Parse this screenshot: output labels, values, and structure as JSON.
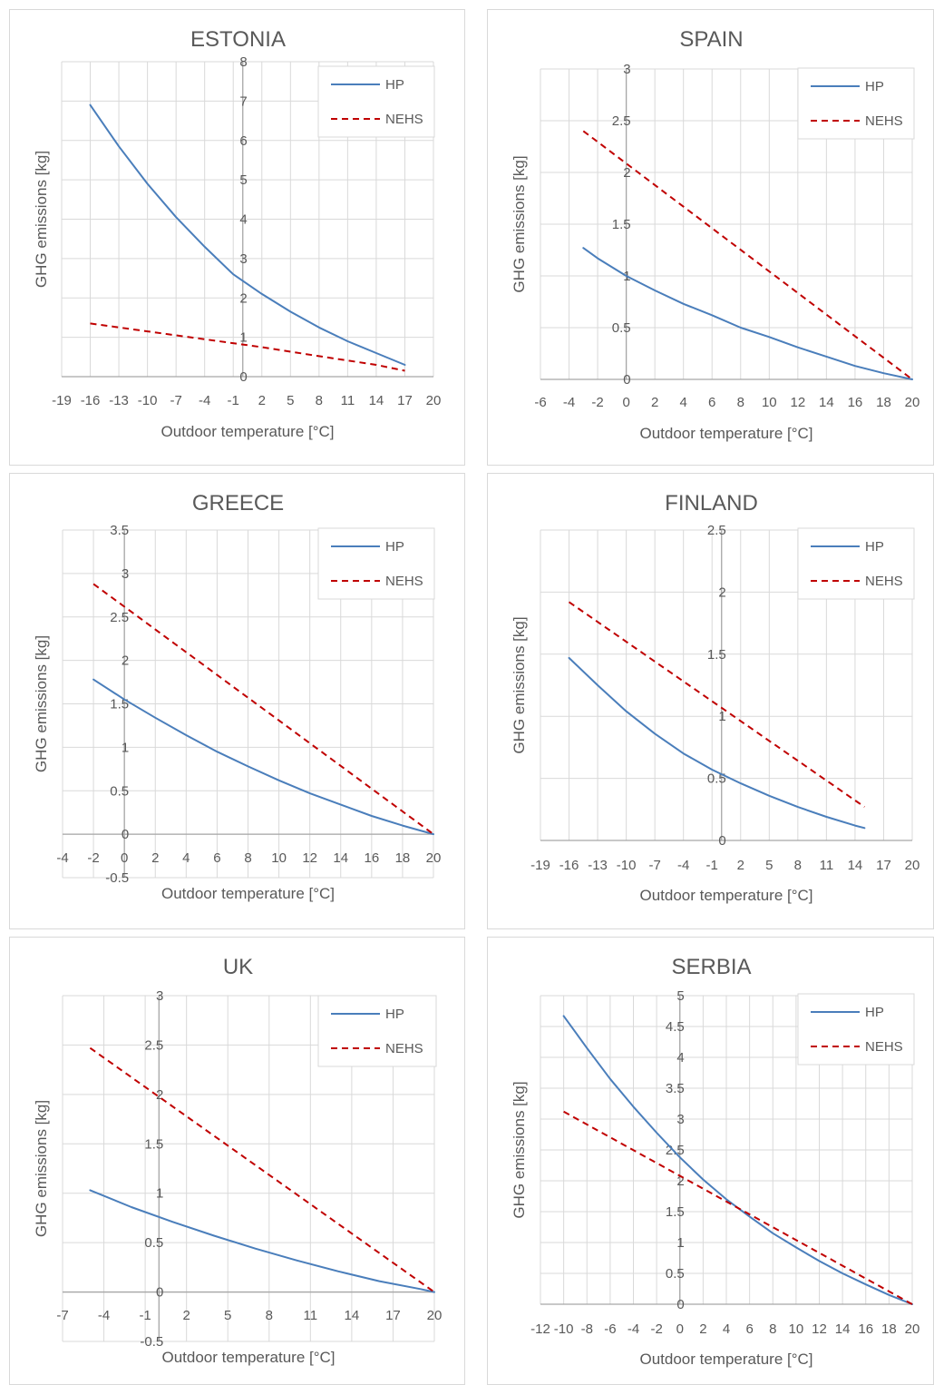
{
  "chart_data": [
    {
      "type": "line",
      "title": "ESTONIA",
      "xlabel": "Outdoor temperature [°C]",
      "ylabel": "GHG emissions [kg]",
      "xlim": [
        -19,
        20
      ],
      "ylim": [
        0,
        8
      ],
      "xticks": [
        -19,
        -16,
        -13,
        -10,
        -7,
        -4,
        -1,
        2,
        5,
        8,
        11,
        14,
        17,
        20
      ],
      "xtick_labels": [
        "-19",
        "-16",
        "-13",
        "-10",
        "-7",
        "-4",
        "-1",
        "2",
        "5",
        "8",
        "11",
        "14",
        "17",
        "20"
      ],
      "yticks": [
        0,
        1,
        2,
        3,
        4,
        5,
        6,
        7,
        8
      ],
      "ytick_labels": [
        "0",
        "1",
        "2",
        "3",
        "4",
        "5",
        "6",
        "7",
        "8"
      ],
      "grid": true,
      "legend_position": "top-right",
      "series": [
        {
          "name": "HP",
          "color": "#4a7ebb",
          "dash": false,
          "x": [
            -16,
            -13,
            -10,
            -7,
            -4,
            -1,
            2,
            5,
            8,
            11,
            14,
            17
          ],
          "y": [
            6.9,
            5.85,
            4.9,
            4.05,
            3.3,
            2.6,
            2.1,
            1.65,
            1.25,
            0.9,
            0.6,
            0.3
          ]
        },
        {
          "name": "NEHS",
          "color": "#c00000",
          "dash": true,
          "x": [
            -16,
            -10,
            -4,
            2,
            8,
            14,
            17
          ],
          "y": [
            1.35,
            1.15,
            0.95,
            0.75,
            0.52,
            0.3,
            0.15
          ]
        }
      ]
    },
    {
      "type": "line",
      "title": "SPAIN",
      "xlabel": "Outdoor temperature [°C]",
      "ylabel": "GHG emissions [kg]",
      "xlim": [
        -6,
        20
      ],
      "ylim": [
        0,
        3
      ],
      "xticks": [
        -6,
        -4,
        -2,
        0,
        2,
        4,
        6,
        8,
        10,
        12,
        14,
        16,
        18,
        20
      ],
      "xtick_labels": [
        "-6",
        "-4",
        "-2",
        "0",
        "2",
        "4",
        "6",
        "8",
        "10",
        "12",
        "14",
        "16",
        "18",
        "20"
      ],
      "yticks": [
        0,
        0.5,
        1,
        1.5,
        2,
        2.5,
        3
      ],
      "ytick_labels": [
        "0",
        "0.5",
        "1",
        "1.5",
        "2",
        "2.5",
        "3"
      ],
      "grid": true,
      "legend_position": "top-right",
      "series": [
        {
          "name": "HP",
          "color": "#4a7ebb",
          "dash": false,
          "x": [
            -3,
            -2,
            0,
            2,
            4,
            6,
            8,
            10,
            12,
            14,
            16,
            18,
            20
          ],
          "y": [
            1.27,
            1.17,
            1.0,
            0.86,
            0.73,
            0.62,
            0.5,
            0.41,
            0.31,
            0.22,
            0.13,
            0.06,
            0.0
          ]
        },
        {
          "name": "NEHS",
          "color": "#c00000",
          "dash": true,
          "x": [
            -3,
            20
          ],
          "y": [
            2.4,
            0.0
          ]
        }
      ]
    },
    {
      "type": "line",
      "title": "GREECE",
      "xlabel": "Outdoor temperature [°C]",
      "ylabel": "GHG emissions [kg]",
      "xlim": [
        -4,
        20
      ],
      "ylim": [
        -0.5,
        3.5
      ],
      "xticks": [
        -4,
        -2,
        0,
        2,
        4,
        6,
        8,
        10,
        12,
        14,
        16,
        18,
        20
      ],
      "xtick_labels": [
        "-4",
        "-2",
        "0",
        "2",
        "4",
        "6",
        "8",
        "10",
        "12",
        "14",
        "16",
        "18",
        "20"
      ],
      "yticks": [
        -0.5,
        0,
        0.5,
        1,
        1.5,
        2,
        2.5,
        3,
        3.5
      ],
      "ytick_labels": [
        "-0.5",
        "0",
        "0.5",
        "1",
        "1.5",
        "2",
        "2.5",
        "3",
        "3.5"
      ],
      "grid": true,
      "legend_position": "top-right",
      "series": [
        {
          "name": "HP",
          "color": "#4a7ebb",
          "dash": false,
          "x": [
            -2,
            0,
            2,
            4,
            6,
            8,
            10,
            12,
            14,
            16,
            18,
            20
          ],
          "y": [
            1.78,
            1.55,
            1.34,
            1.14,
            0.95,
            0.78,
            0.62,
            0.47,
            0.34,
            0.21,
            0.1,
            0.0
          ]
        },
        {
          "name": "NEHS",
          "color": "#c00000",
          "dash": true,
          "x": [
            -2,
            20
          ],
          "y": [
            2.88,
            0.0
          ]
        }
      ]
    },
    {
      "type": "line",
      "title": "FINLAND",
      "xlabel": "Outdoor temperature [°C]",
      "ylabel": "GHG emissions [kg]",
      "xlim": [
        -19,
        20
      ],
      "ylim": [
        0,
        2.5
      ],
      "xticks": [
        -19,
        -16,
        -13,
        -10,
        -7,
        -4,
        -1,
        2,
        5,
        8,
        11,
        14,
        17,
        20
      ],
      "xtick_labels": [
        "-19",
        "-16",
        "-13",
        "-10",
        "-7",
        "-4",
        "-1",
        "2",
        "5",
        "8",
        "11",
        "14",
        "17",
        "20"
      ],
      "yticks": [
        0,
        0.5,
        1,
        1.5,
        2,
        2.5
      ],
      "ytick_labels": [
        "0",
        "0.5",
        "1",
        "1.5",
        "2",
        "2.5"
      ],
      "grid": true,
      "legend_position": "top-right",
      "series": [
        {
          "name": "HP",
          "color": "#4a7ebb",
          "dash": false,
          "x": [
            -16,
            -13,
            -10,
            -7,
            -4,
            -1,
            2,
            5,
            8,
            11,
            14,
            15
          ],
          "y": [
            1.47,
            1.25,
            1.04,
            0.86,
            0.7,
            0.57,
            0.46,
            0.36,
            0.27,
            0.19,
            0.12,
            0.1
          ]
        },
        {
          "name": "NEHS",
          "color": "#c00000",
          "dash": true,
          "x": [
            -16,
            15
          ],
          "y": [
            1.92,
            0.27
          ]
        }
      ]
    },
    {
      "type": "line",
      "title": "UK",
      "xlabel": "Outdoor temperature [°C]",
      "ylabel": "GHG emissions [kg]",
      "xlim": [
        -7,
        20
      ],
      "ylim": [
        -0.5,
        3
      ],
      "xticks": [
        -7,
        -4,
        -1,
        2,
        5,
        8,
        11,
        14,
        17,
        20
      ],
      "xtick_labels": [
        "-7",
        "-4",
        "-1",
        "2",
        "5",
        "8",
        "11",
        "14",
        "17",
        "20"
      ],
      "yticks": [
        -0.5,
        0,
        0.5,
        1,
        1.5,
        2,
        2.5,
        3
      ],
      "ytick_labels": [
        "-0.5",
        "0",
        "0.5",
        "1",
        "1.5",
        "2",
        "2.5",
        "3"
      ],
      "grid": true,
      "legend_position": "top-right",
      "series": [
        {
          "name": "HP",
          "color": "#4a7ebb",
          "dash": false,
          "x": [
            -5,
            -2,
            1,
            4,
            7,
            10,
            13,
            16,
            19,
            20
          ],
          "y": [
            1.03,
            0.86,
            0.71,
            0.57,
            0.44,
            0.32,
            0.21,
            0.11,
            0.03,
            0.0
          ]
        },
        {
          "name": "NEHS",
          "color": "#c00000",
          "dash": true,
          "x": [
            -5,
            20
          ],
          "y": [
            2.47,
            0.0
          ]
        }
      ]
    },
    {
      "type": "line",
      "title": "SERBIA",
      "xlabel": "Outdoor temperature [°C]",
      "ylabel": "GHG emissions [kg]",
      "xlim": [
        -12,
        20
      ],
      "ylim": [
        0,
        5
      ],
      "xticks": [
        -12,
        -10,
        -8,
        -6,
        -4,
        -2,
        0,
        2,
        4,
        6,
        8,
        10,
        12,
        14,
        16,
        18,
        20
      ],
      "xtick_labels": [
        "-12",
        "-10",
        "-8",
        "-6",
        "-4",
        "-2",
        "0",
        "2",
        "4",
        "6",
        "8",
        "10",
        "12",
        "14",
        "16",
        "18",
        "20"
      ],
      "yticks": [
        0,
        0.5,
        1,
        1.5,
        2,
        2.5,
        3,
        3.5,
        4,
        4.5,
        5
      ],
      "ytick_labels": [
        "0",
        "0.5",
        "1",
        "1.5",
        "2",
        "2.5",
        "3",
        "3.5",
        "4",
        "4.5",
        "5"
      ],
      "grid": true,
      "legend_position": "top-right",
      "series": [
        {
          "name": "HP",
          "color": "#4a7ebb",
          "dash": false,
          "x": [
            -10,
            -8,
            -6,
            -4,
            -2,
            0,
            2,
            4,
            6,
            8,
            10,
            12,
            14,
            16,
            18,
            20
          ],
          "y": [
            4.67,
            4.15,
            3.65,
            3.2,
            2.78,
            2.38,
            2.02,
            1.7,
            1.42,
            1.15,
            0.92,
            0.7,
            0.5,
            0.32,
            0.15,
            0.0
          ]
        },
        {
          "name": "NEHS",
          "color": "#c00000",
          "dash": true,
          "x": [
            -10,
            20
          ],
          "y": [
            3.12,
            0.0
          ]
        }
      ]
    }
  ]
}
